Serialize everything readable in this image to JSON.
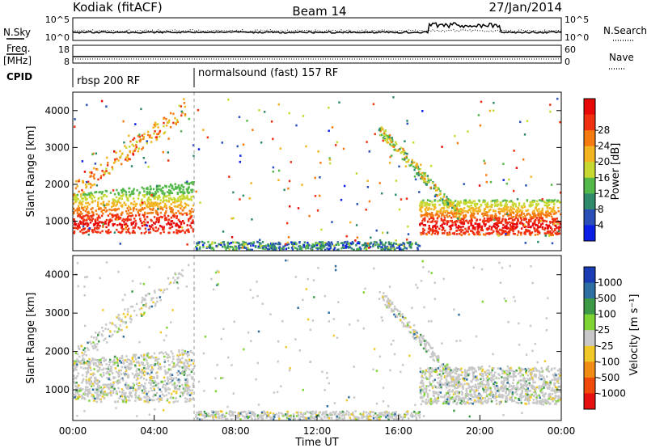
{
  "header": {
    "station": "Kodiak (fitACF)",
    "beam": "Beam 14",
    "date": "27/Jan/2014"
  },
  "left_labels": {
    "nsky": "N.Sky",
    "freq": "Freq.",
    "freq_unit": "[MHz]",
    "cpid": "CPID"
  },
  "right_labels": {
    "nsearch": "N.Search",
    "nave": "Nave"
  },
  "noise_panel": {
    "left_ticks": [
      "10^5",
      "10^0"
    ],
    "right_ticks": [
      "10^5",
      "10^0"
    ]
  },
  "freq_panel": {
    "left_ticks": [
      "18",
      "8"
    ],
    "right_ticks": [
      "60",
      "0"
    ]
  },
  "cpid_panel": {
    "segments": [
      {
        "label": "rbsp 200 RF",
        "start_hour": 0,
        "end_hour": 6
      },
      {
        "label": "normalsound (fast) 157 RF",
        "start_hour": 6,
        "end_hour": 24
      }
    ]
  },
  "chart_data": [
    {
      "type": "heatmap",
      "name": "power",
      "ylabel": "Slant Range [km]",
      "yticks": [
        "1000",
        "2000",
        "3000",
        "4000"
      ],
      "ylim": [
        200,
        4500
      ],
      "xlim": [
        0,
        24
      ],
      "colorbar_label": "Power [dB]",
      "colorbar_ticks": [
        "4",
        "8",
        "12",
        "16",
        "20",
        "24",
        "28"
      ],
      "colorbar_colors": [
        "#0a1ee6",
        "#2a50b8",
        "#2f8a6a",
        "#55b84a",
        "#c8d832",
        "#f2b420",
        "#f57a10",
        "#f03010",
        "#e80808"
      ]
    },
    {
      "type": "heatmap",
      "name": "velocity",
      "xlabel": "Time UT",
      "ylabel": "Slant Range [km]",
      "yticks": [
        "1000",
        "2000",
        "3000",
        "4000"
      ],
      "ylim": [
        200,
        4500
      ],
      "xlim": [
        0,
        24
      ],
      "xticks": [
        "00:00",
        "04:00",
        "08:00",
        "12:00",
        "16:00",
        "20:00",
        "00:00"
      ],
      "colorbar_label": "Velocity [m s⁻¹]",
      "colorbar_ticks": [
        "1000",
        "500",
        "100",
        "25",
        "-25",
        "-100",
        "-500",
        "-1000"
      ],
      "colorbar_colors": [
        "#1a3cb4",
        "#2e6ea0",
        "#3c9a46",
        "#7ed432",
        "#c8c8c8",
        "#f0c828",
        "#f08c14",
        "#f04a0a",
        "#e61010"
      ]
    }
  ]
}
